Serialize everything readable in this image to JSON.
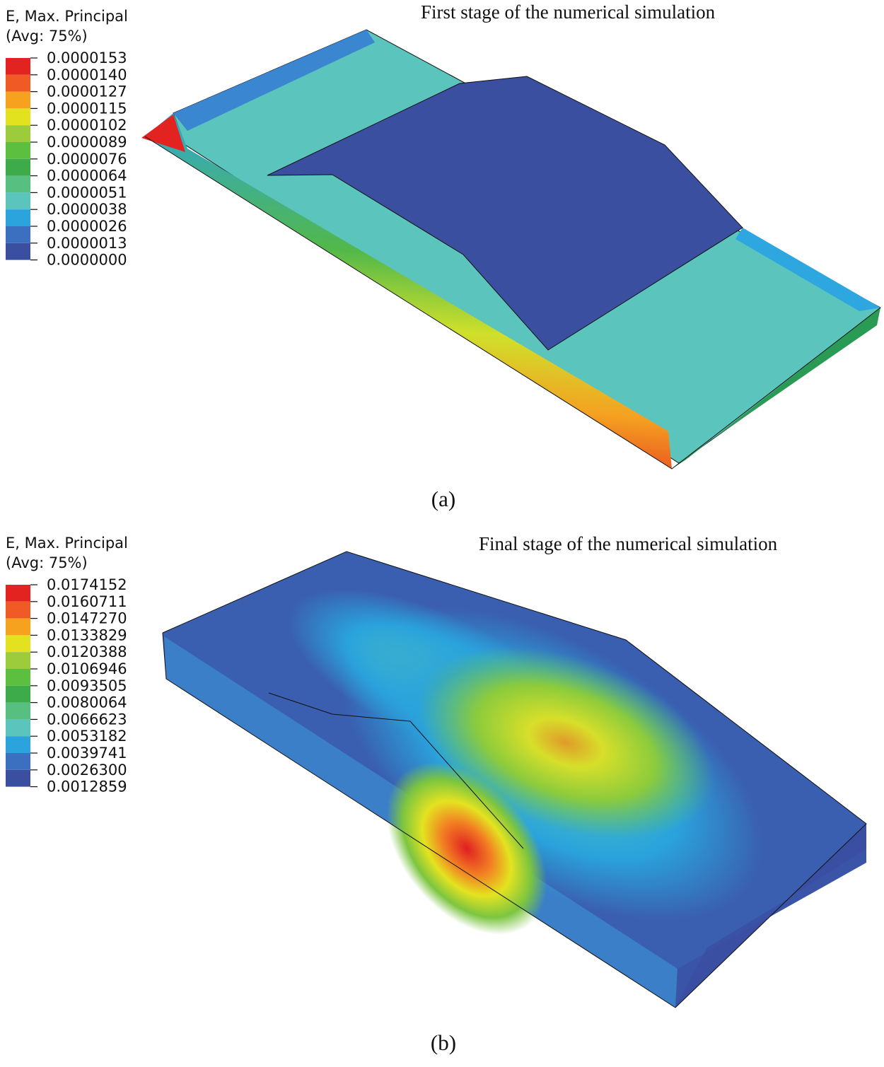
{
  "panels": [
    {
      "legend_title": "E, Max. Principal",
      "legend_subtitle": "(Avg: 75%)",
      "legend_values": [
        "0.0000153",
        "0.0000140",
        "0.0000127",
        "0.0000115",
        "0.0000102",
        "0.0000089",
        "0.0000076",
        "0.0000064",
        "0.0000051",
        "0.0000038",
        "0.0000026",
        "0.0000013",
        "0.0000000"
      ],
      "title": "First stage of the numerical simulation",
      "caption": "(a)"
    },
    {
      "legend_title": "E, Max. Principal",
      "legend_subtitle": "(Avg: 75%)",
      "legend_values": [
        "0.0174152",
        "0.0160711",
        "0.0147270",
        "0.0133829",
        "0.0120388",
        "0.0106946",
        "0.0093505",
        "0.0080064",
        "0.0066623",
        "0.0053182",
        "0.0039741",
        "0.0026300",
        "0.0012859"
      ],
      "title": "Final stage of the numerical simulation",
      "caption": "(b)"
    }
  ]
}
